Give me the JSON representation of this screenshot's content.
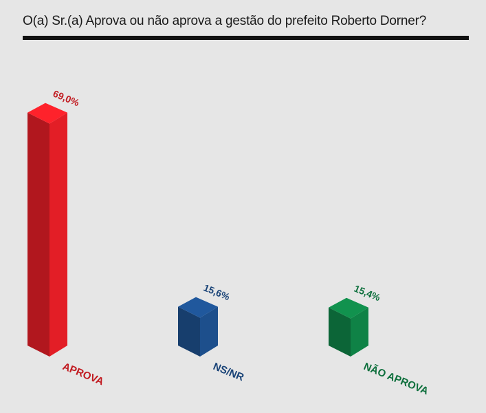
{
  "chart_data": {
    "type": "bar",
    "title": "O(a) Sr.(a) Aprova ou não aprova a gestão do prefeito Roberto Dorner?",
    "categories": [
      "APROVA",
      "NS/NR",
      "NÃO APROVA"
    ],
    "values": [
      69.0,
      15.6,
      15.4
    ],
    "value_labels": [
      "69,0%",
      "15,6%",
      "15,4%"
    ],
    "colors": [
      "#e31e26",
      "#1d4f8c",
      "#0f8246"
    ],
    "style": "3d-columns",
    "grid": false,
    "legend": "none"
  }
}
